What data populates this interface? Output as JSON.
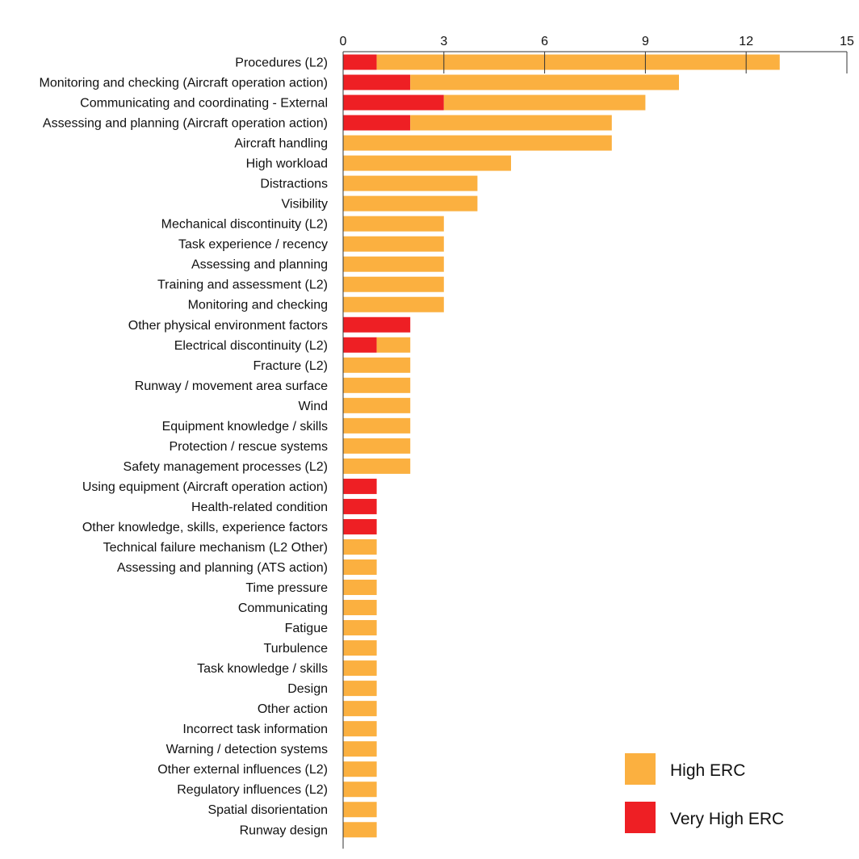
{
  "chart_data": {
    "type": "bar",
    "orientation": "horizontal",
    "stacked": true,
    "title": "",
    "xlabel": "",
    "ylabel": "",
    "xlim": [
      0,
      15
    ],
    "xticks": [
      0,
      3,
      6,
      9,
      12,
      15
    ],
    "x_axis_position": "top",
    "grid": false,
    "legend_position": "bottom-right",
    "categories": [
      "Procedures (L2)",
      "Monitoring and checking (Aircraft operation action)",
      "Communicating and coordinating - External",
      "Assessing and planning (Aircraft operation action)",
      "Aircraft handling",
      "High workload",
      "Distractions",
      "Visibility",
      "Mechanical discontinuity (L2)",
      "Task experience / recency",
      "Assessing and planning",
      "Training and assessment (L2)",
      "Monitoring and checking",
      "Other physical environment factors",
      "Electrical discontinuity (L2)",
      "Fracture (L2)",
      "Runway / movement area surface",
      "Wind",
      "Equipment knowledge / skills",
      "Protection / rescue systems",
      "Safety management processes (L2)",
      "Using equipment (Aircraft operation action)",
      "Health-related condition",
      "Other knowledge, skills, experience factors",
      "Technical failure mechanism (L2 Other)",
      "Assessing and planning (ATS action)",
      "Time pressure",
      "Communicating",
      "Fatigue",
      "Turbulence",
      "Task knowledge / skills",
      "Design",
      "Other action",
      "Incorrect task information",
      "Warning / detection systems",
      "Other external influences (L2)",
      "Regulatory  influences (L2)",
      "Spatial disorientation",
      "Runway design"
    ],
    "series": [
      {
        "name": "Very High ERC",
        "color": "#ee1f24",
        "values": [
          1,
          2,
          3,
          2,
          0,
          0,
          0,
          0,
          0,
          0,
          0,
          0,
          0,
          2,
          1,
          0,
          0,
          0,
          0,
          0,
          0,
          1,
          1,
          1,
          0,
          0,
          0,
          0,
          0,
          0,
          0,
          0,
          0,
          0,
          0,
          0,
          0,
          0,
          0
        ]
      },
      {
        "name": "High ERC",
        "color": "#fbb040",
        "values": [
          12,
          8,
          6,
          6,
          8,
          5,
          4,
          4,
          3,
          3,
          3,
          3,
          3,
          0,
          1,
          2,
          2,
          2,
          2,
          2,
          2,
          0,
          0,
          0,
          1,
          1,
          1,
          1,
          1,
          1,
          1,
          1,
          1,
          1,
          1,
          1,
          1,
          1,
          1
        ]
      }
    ],
    "legend": [
      {
        "label": "High ERC",
        "color": "#fbb040"
      },
      {
        "label": "Very High ERC",
        "color": "#ee1f24"
      }
    ]
  }
}
